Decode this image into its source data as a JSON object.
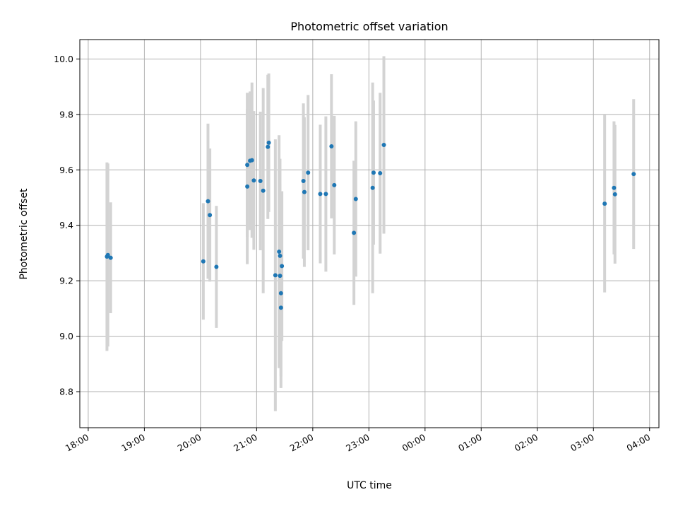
{
  "chart_data": {
    "type": "scatter",
    "title": "Photometric offset variation",
    "xlabel": "UTC time",
    "ylabel": "Photometric offset",
    "grid": true,
    "colors": {
      "point": "#1f77b4",
      "errorbar": "#d3d3d3",
      "grid": "#b0b0b0"
    },
    "xlim": [
      "17:51",
      "04:10"
    ],
    "ylim": [
      8.67,
      10.07
    ],
    "x_ticks": [
      "18:00",
      "19:00",
      "20:00",
      "21:00",
      "22:00",
      "23:00",
      "00:00",
      "01:00",
      "02:00",
      "03:00",
      "04:00"
    ],
    "y_ticks": [
      "8.8",
      "9.0",
      "9.2",
      "9.4",
      "9.6",
      "9.8",
      "10.0"
    ],
    "points": [
      {
        "x": "18:20",
        "y": 9.287,
        "err": 0.34
      },
      {
        "x": "18:21",
        "y": 9.293,
        "err": 0.33
      },
      {
        "x": "18:24",
        "y": 9.283,
        "err": 0.2
      },
      {
        "x": "20:03",
        "y": 9.27,
        "err": 0.21
      },
      {
        "x": "20:08",
        "y": 9.487,
        "err": 0.28
      },
      {
        "x": "20:10",
        "y": 9.437,
        "err": 0.24
      },
      {
        "x": "20:17",
        "y": 9.25,
        "err": 0.22
      },
      {
        "x": "20:50",
        "y": 9.618,
        "err": 0.26
      },
      {
        "x": "20:50",
        "y": 9.54,
        "err": 0.28
      },
      {
        "x": "20:53",
        "y": 9.633,
        "err": 0.25
      },
      {
        "x": "20:55",
        "y": 9.635,
        "err": 0.28
      },
      {
        "x": "20:57",
        "y": 9.562,
        "err": 0.25
      },
      {
        "x": "21:04",
        "y": 9.56,
        "err": 0.25
      },
      {
        "x": "21:07",
        "y": 9.525,
        "err": 0.37
      },
      {
        "x": "21:12",
        "y": 9.683,
        "err": 0.26
      },
      {
        "x": "21:13",
        "y": 9.698,
        "err": 0.25
      },
      {
        "x": "21:20",
        "y": 9.22,
        "err": 0.49
      },
      {
        "x": "21:24",
        "y": 9.305,
        "err": 0.42
      },
      {
        "x": "21:25",
        "y": 9.29,
        "err": 0.35
      },
      {
        "x": "21:25",
        "y": 9.218,
        "err": 0.33
      },
      {
        "x": "21:26",
        "y": 9.155,
        "err": 0.3
      },
      {
        "x": "21:26",
        "y": 9.103,
        "err": 0.29
      },
      {
        "x": "21:27",
        "y": 9.253,
        "err": 0.27
      },
      {
        "x": "21:50",
        "y": 9.56,
        "err": 0.28
      },
      {
        "x": "21:51",
        "y": 9.52,
        "err": 0.27
      },
      {
        "x": "21:55",
        "y": 9.59,
        "err": 0.28
      },
      {
        "x": "22:08",
        "y": 9.513,
        "err": 0.25
      },
      {
        "x": "22:14",
        "y": 9.513,
        "err": 0.28
      },
      {
        "x": "22:20",
        "y": 9.685,
        "err": 0.26
      },
      {
        "x": "22:23",
        "y": 9.545,
        "err": 0.25
      },
      {
        "x": "22:44",
        "y": 9.373,
        "err": 0.26
      },
      {
        "x": "22:46",
        "y": 9.495,
        "err": 0.28
      },
      {
        "x": "23:04",
        "y": 9.535,
        "err": 0.38
      },
      {
        "x": "23:05",
        "y": 9.59,
        "err": 0.26
      },
      {
        "x": "23:12",
        "y": 9.588,
        "err": 0.29
      },
      {
        "x": "23:16",
        "y": 9.69,
        "err": 0.32
      },
      {
        "x": "03:12",
        "y": 9.478,
        "err": 0.32
      },
      {
        "x": "03:22",
        "y": 9.535,
        "err": 0.24
      },
      {
        "x": "03:23",
        "y": 9.512,
        "err": 0.25
      },
      {
        "x": "03:43",
        "y": 9.585,
        "err": 0.27
      }
    ]
  }
}
